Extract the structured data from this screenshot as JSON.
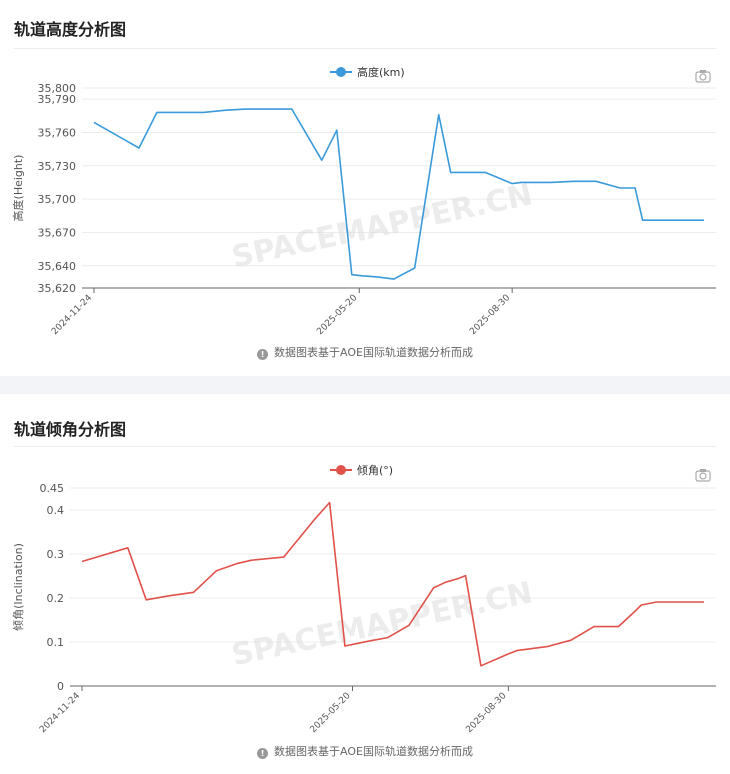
{
  "panels": [
    {
      "title": "轨道高度分析图",
      "note": "数据图表基于AOE国际轨道数据分析而成",
      "watermark": "SPACEMAPPER.CN",
      "icons": {
        "info": "info-icon",
        "camera": "camera-icon"
      }
    },
    {
      "title": "轨道倾角分析图",
      "note": "数据图表基于AOE国际轨道数据分析而成",
      "watermark": "SPACEMAPPER.CN",
      "icons": {
        "info": "info-icon",
        "camera": "camera-icon"
      }
    }
  ],
  "chart_data": [
    {
      "type": "line",
      "legend": "高度(km)",
      "ylabel": "高度(Height)",
      "color": "#3a9ad9",
      "ylim": [
        35620,
        35800
      ],
      "yticks": [
        35620,
        35640,
        35670,
        35700,
        35730,
        35760,
        35790,
        35800
      ],
      "xticks": [
        "2024-11-24",
        "2025-05-20",
        "2025-08-30"
      ],
      "x": [
        "2024-11-24",
        "2024-12-24",
        "2025-01-05",
        "2025-01-20",
        "2025-02-05",
        "2025-02-20",
        "2025-03-05",
        "2025-03-15",
        "2025-04-05",
        "2025-04-25",
        "2025-05-05",
        "2025-05-15",
        "2025-05-22",
        "2025-06-01",
        "2025-06-12",
        "2025-06-26",
        "2025-07-12",
        "2025-07-20",
        "2025-07-28",
        "2025-08-02",
        "2025-08-12",
        "2025-08-30",
        "2025-09-05",
        "2025-09-25",
        "2025-10-10",
        "2025-10-25",
        "2025-11-10",
        "2025-11-20",
        "2025-11-25",
        "2025-12-05",
        "2025-12-15",
        "2026-01-05"
      ],
      "values": [
        35769,
        35746,
        35778,
        35778,
        35778,
        35780,
        35781,
        35781,
        35781,
        35735,
        35762,
        35632,
        35631,
        35630,
        35628,
        35638,
        35776,
        35724,
        35724,
        35724,
        35724,
        35714,
        35715,
        35715,
        35716,
        35716,
        35710,
        35710,
        35681,
        35681,
        35681,
        35681
      ]
    },
    {
      "type": "line",
      "legend": "倾角(°)",
      "ylabel": "倾角(Inclination)",
      "color": "#e0524a",
      "ylim": [
        0,
        0.45
      ],
      "yticks": [
        0,
        0.1,
        0.2,
        0.3,
        0.4,
        0.45
      ],
      "xticks": [
        "2024-11-24",
        "2025-05-20",
        "2025-08-30"
      ],
      "x": [
        "2024-11-24",
        "2024-12-24",
        "2025-01-05",
        "2025-01-20",
        "2025-02-05",
        "2025-02-20",
        "2025-03-05",
        "2025-03-15",
        "2025-04-05",
        "2025-04-25",
        "2025-05-05",
        "2025-05-15",
        "2025-05-22",
        "2025-06-01",
        "2025-06-12",
        "2025-06-26",
        "2025-07-12",
        "2025-07-20",
        "2025-07-28",
        "2025-08-02",
        "2025-08-12",
        "2025-08-30",
        "2025-09-05",
        "2025-09-25",
        "2025-10-10",
        "2025-10-25",
        "2025-11-10",
        "2025-11-20",
        "2025-11-25",
        "2025-12-05",
        "2025-12-15",
        "2026-01-05"
      ],
      "values": [
        0.283,
        0.314,
        0.196,
        0.205,
        0.213,
        0.262,
        0.278,
        0.286,
        0.293,
        0.378,
        0.417,
        0.091,
        0.096,
        0.103,
        0.11,
        0.138,
        0.223,
        0.236,
        0.244,
        0.251,
        0.046,
        0.073,
        0.081,
        0.09,
        0.104,
        0.135,
        0.135,
        0.167,
        0.184,
        0.191,
        0.191,
        0.191
      ]
    }
  ]
}
